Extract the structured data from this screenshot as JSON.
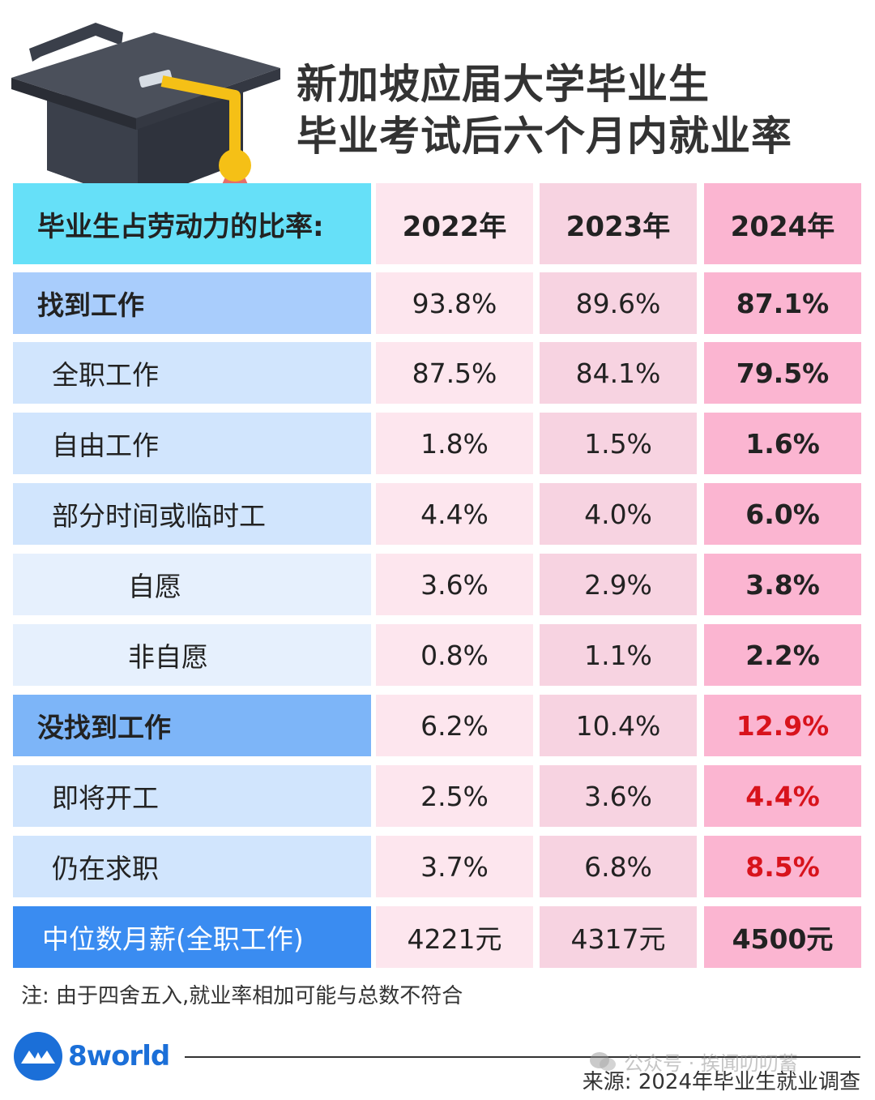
{
  "title": {
    "line1": "新加坡应届大学毕业生",
    "line2": "毕业考试后六个月内就业率"
  },
  "table": {
    "header": {
      "label": "毕业生占劳动力的比率:",
      "years": [
        "2022年",
        "2023年",
        "2024年"
      ]
    },
    "rows": [
      {
        "label": "找到工作",
        "values": [
          "93.8%",
          "89.6%",
          "87.1%"
        ]
      },
      {
        "label": "全职工作",
        "values": [
          "87.5%",
          "84.1%",
          "79.5%"
        ]
      },
      {
        "label": "自由工作",
        "values": [
          "1.8%",
          "1.5%",
          "1.6%"
        ]
      },
      {
        "label": "部分时间或临时工",
        "values": [
          "4.4%",
          "4.0%",
          "6.0%"
        ]
      },
      {
        "label": "自愿",
        "values": [
          "3.6%",
          "2.9%",
          "3.8%"
        ]
      },
      {
        "label": "非自愿",
        "values": [
          "0.8%",
          "1.1%",
          "2.2%"
        ]
      },
      {
        "label": "没找到工作",
        "values": [
          "6.2%",
          "10.4%",
          "12.9%"
        ]
      },
      {
        "label": "即将开工",
        "values": [
          "2.5%",
          "3.6%",
          "4.4%"
        ]
      },
      {
        "label": "仍在求职",
        "values": [
          "3.7%",
          "6.8%",
          "8.5%"
        ]
      },
      {
        "label": "中位数月薪(全职工作)",
        "values": [
          "4221元",
          "4317元",
          "4500元"
        ]
      }
    ]
  },
  "note": "注: 由于四舍五入,就业率相加可能与总数不符合",
  "logo_text": "8world",
  "watermark": "公众号 · 挨闻叨叨蓄",
  "source": "来源: 2024年毕业生就业调查",
  "colors": {
    "header_label": "#66e0f8",
    "blue_main": "#a9cdfc",
    "blue_sub": "#d1e5fd",
    "blue_subsub": "#e6f0fd",
    "blue_not_found": "#7db5f8",
    "blue_salary": "#3a8cf1",
    "highlight_red": "#d8131c",
    "brand_blue": "#1b6fd8"
  }
}
